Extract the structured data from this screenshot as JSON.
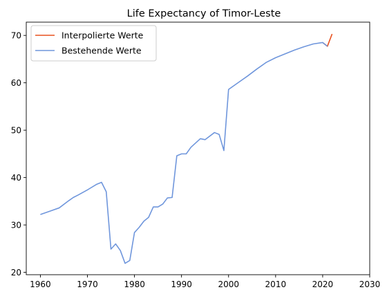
{
  "chart_data": {
    "type": "line",
    "title": "Life Expectancy of Timor-Leste",
    "xlabel": "",
    "ylabel": "",
    "xlim": [
      1957,
      2030
    ],
    "ylim": [
      19.5,
      72.8
    ],
    "xticks": [
      1960,
      1970,
      1980,
      1990,
      2000,
      2010,
      2020,
      2030
    ],
    "yticks": [
      20,
      30,
      40,
      50,
      60,
      70
    ],
    "grid": false,
    "legend_position": "top-left",
    "series": [
      {
        "name": "Interpolierte Werte",
        "color": "#e8501e",
        "x": [
          2020,
          2021,
          2022
        ],
        "y": [
          68.5,
          67.7,
          70.3
        ]
      },
      {
        "name": "Bestehende Werte",
        "color": "#6f96dc",
        "x": [
          1960,
          1962,
          1964,
          1966,
          1967,
          1968,
          1970,
          1972,
          1973,
          1974,
          1975,
          1976,
          1977,
          1978,
          1979,
          1980,
          1981,
          1982,
          1983,
          1984,
          1985,
          1986,
          1987,
          1988,
          1989,
          1990,
          1991,
          1992,
          1994,
          1995,
          1997,
          1998,
          1999,
          2000,
          2002,
          2004,
          2006,
          2008,
          2010,
          2012,
          2014,
          2016,
          2018,
          2020,
          2021
        ],
        "y": [
          32.2,
          32.9,
          33.6,
          35.1,
          35.8,
          36.3,
          37.4,
          38.6,
          39.0,
          37.0,
          24.9,
          26.0,
          24.6,
          21.9,
          22.5,
          28.4,
          29.5,
          30.8,
          31.6,
          33.8,
          33.8,
          34.4,
          35.7,
          35.8,
          44.6,
          45.0,
          45.0,
          46.4,
          48.2,
          48.0,
          49.5,
          49.1,
          45.7,
          58.6,
          60.0,
          61.4,
          62.9,
          64.3,
          65.3,
          66.1,
          66.9,
          67.6,
          68.2,
          68.5,
          67.7
        ]
      }
    ]
  }
}
